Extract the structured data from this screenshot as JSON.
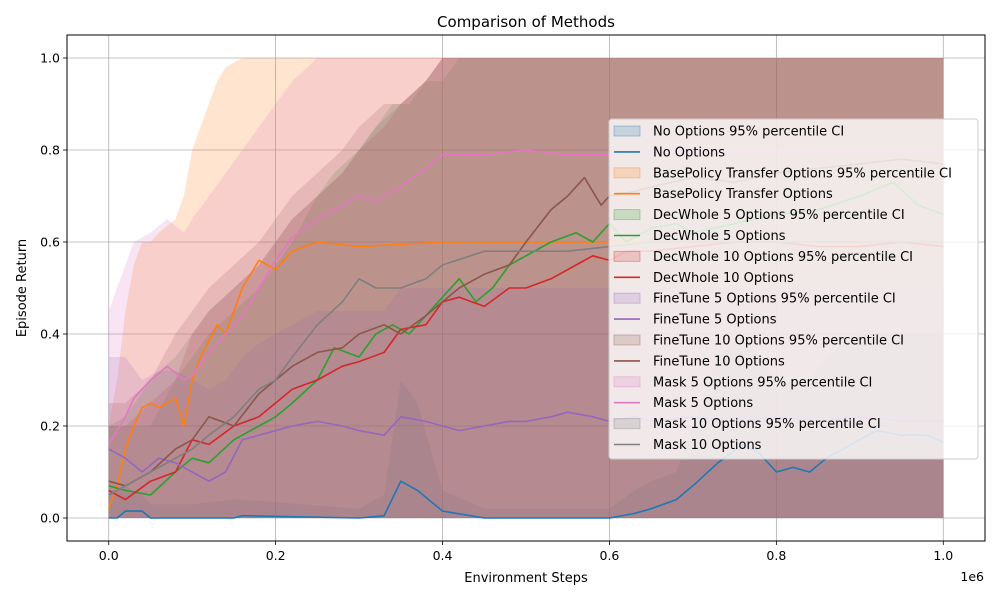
{
  "chart_data": {
    "type": "line",
    "title": "Comparison of Methods",
    "xlabel": "Environment Steps",
    "ylabel": "Episode Return",
    "x_offset_text": "1e6",
    "xlim": [
      -0.05,
      1.05
    ],
    "ylim": [
      -0.05,
      1.05
    ],
    "x_tick_labels": [
      "0.0",
      "0.2",
      "0.4",
      "0.6",
      "0.8",
      "1.0"
    ],
    "y_tick_labels": [
      "0.0",
      "0.2",
      "0.4",
      "0.6",
      "0.8",
      "1.0"
    ],
    "grid": true,
    "legend_position": "right",
    "legend_labels": [
      "No Options 95% percentile CI",
      "No Options",
      "BasePolicy Transfer Options 95% percentile CI",
      "BasePolicy Transfer Options",
      "DecWhole 5 Options 95% percentile CI",
      "DecWhole 5 Options",
      "DecWhole 10 Options 95% percentile CI",
      "DecWhole 10 Options",
      "FineTune 5 Options 95% percentile CI",
      "FineTune 5 Options",
      "FineTune 10 Options 95% percentile CI",
      "FineTune 10 Options",
      "Mask 5 Options 95% percentile CI",
      "Mask 5 Options",
      "Mask 10 Options 95% percentile CI",
      "Mask 10 Options"
    ],
    "series": [
      {
        "name": "No Options",
        "color": "#1f77b4",
        "x": [
          0,
          0.01,
          0.02,
          0.04,
          0.05,
          0.1,
          0.15,
          0.16,
          0.3,
          0.33,
          0.35,
          0.37,
          0.4,
          0.45,
          0.6,
          0.63,
          0.65,
          0.68,
          0.7,
          0.73,
          0.76,
          0.78,
          0.8,
          0.82,
          0.84,
          0.86,
          0.9,
          0.92,
          0.95,
          0.98,
          1.0
        ],
        "y": [
          0.0,
          0.0,
          0.015,
          0.015,
          0.0,
          0.0,
          0.0,
          0.005,
          0.0,
          0.005,
          0.08,
          0.06,
          0.015,
          0.0,
          0.0,
          0.01,
          0.02,
          0.04,
          0.07,
          0.12,
          0.16,
          0.14,
          0.1,
          0.11,
          0.1,
          0.13,
          0.17,
          0.19,
          0.18,
          0.18,
          0.165
        ],
        "ci_upper": [
          0.06,
          0.06,
          0.07,
          0.05,
          0.03,
          0.03,
          0.04,
          0.04,
          0.02,
          0.05,
          0.3,
          0.25,
          0.06,
          0.02,
          0.02,
          0.06,
          0.08,
          0.1,
          0.2,
          0.35,
          0.4,
          0.35,
          0.3,
          0.3,
          0.3,
          0.35,
          0.4,
          0.4,
          0.4,
          0.4,
          0.4
        ]
      },
      {
        "name": "BasePolicy Transfer Options",
        "color": "#ff7f0e",
        "x": [
          0,
          0.01,
          0.02,
          0.03,
          0.04,
          0.05,
          0.06,
          0.08,
          0.09,
          0.1,
          0.11,
          0.13,
          0.14,
          0.16,
          0.18,
          0.2,
          0.22,
          0.25,
          0.3,
          0.4,
          0.5,
          0.6,
          0.7,
          0.8,
          0.9,
          1.0
        ],
        "y": [
          0.02,
          0.07,
          0.15,
          0.2,
          0.24,
          0.25,
          0.24,
          0.26,
          0.2,
          0.3,
          0.35,
          0.42,
          0.4,
          0.5,
          0.56,
          0.54,
          0.58,
          0.6,
          0.59,
          0.6,
          0.6,
          0.6,
          0.6,
          0.6,
          0.6,
          0.6
        ],
        "ci_upper": [
          0.2,
          0.3,
          0.45,
          0.55,
          0.6,
          0.6,
          0.62,
          0.65,
          0.7,
          0.8,
          0.85,
          0.95,
          0.98,
          1.0,
          1.0,
          1.0,
          1.0,
          1.0,
          1.0,
          1.0,
          1.0,
          1.0,
          1.0,
          1.0,
          1.0,
          1.0
        ]
      },
      {
        "name": "DecWhole 5 Options",
        "color": "#2ca02c",
        "x": [
          0,
          0.02,
          0.05,
          0.08,
          0.1,
          0.12,
          0.15,
          0.18,
          0.2,
          0.22,
          0.25,
          0.27,
          0.3,
          0.32,
          0.34,
          0.36,
          0.38,
          0.4,
          0.42,
          0.44,
          0.46,
          0.48,
          0.5,
          0.53,
          0.56,
          0.58,
          0.6,
          0.62,
          0.65,
          0.68,
          0.7,
          0.75,
          0.8,
          0.85,
          0.9,
          0.94,
          0.97,
          1.0
        ],
        "y": [
          0.07,
          0.06,
          0.05,
          0.1,
          0.13,
          0.12,
          0.17,
          0.2,
          0.22,
          0.25,
          0.3,
          0.37,
          0.35,
          0.4,
          0.42,
          0.4,
          0.44,
          0.48,
          0.52,
          0.47,
          0.5,
          0.55,
          0.57,
          0.6,
          0.62,
          0.6,
          0.64,
          0.6,
          0.63,
          0.64,
          0.62,
          0.64,
          0.66,
          0.67,
          0.7,
          0.73,
          0.68,
          0.66
        ],
        "ci_upper": [
          0.2,
          0.2,
          0.2,
          0.3,
          0.35,
          0.4,
          0.45,
          0.5,
          0.55,
          0.6,
          0.7,
          0.75,
          0.8,
          0.85,
          0.9,
          0.9,
          0.95,
          0.95,
          1.0,
          1.0,
          1.0,
          1.0,
          1.0,
          1.0,
          1.0,
          1.0,
          1.0,
          1.0,
          1.0,
          1.0,
          1.0,
          1.0,
          1.0,
          1.0,
          1.0,
          1.0,
          1.0,
          1.0
        ]
      },
      {
        "name": "DecWhole 10 Options",
        "color": "#d62728",
        "x": [
          0,
          0.02,
          0.05,
          0.08,
          0.1,
          0.12,
          0.15,
          0.18,
          0.2,
          0.22,
          0.25,
          0.28,
          0.3,
          0.33,
          0.35,
          0.38,
          0.4,
          0.42,
          0.45,
          0.48,
          0.5,
          0.53,
          0.56,
          0.58,
          0.6,
          0.62,
          0.65,
          0.7,
          0.75,
          0.8,
          0.85,
          0.9,
          0.95,
          1.0
        ],
        "y": [
          0.06,
          0.04,
          0.08,
          0.1,
          0.17,
          0.16,
          0.2,
          0.22,
          0.25,
          0.28,
          0.3,
          0.33,
          0.34,
          0.36,
          0.41,
          0.42,
          0.47,
          0.48,
          0.46,
          0.5,
          0.5,
          0.52,
          0.55,
          0.57,
          0.56,
          0.58,
          0.58,
          0.59,
          0.6,
          0.6,
          0.59,
          0.59,
          0.6,
          0.59
        ],
        "ci_upper": [
          0.2,
          0.2,
          0.25,
          0.3,
          0.4,
          0.45,
          0.5,
          0.55,
          0.6,
          0.65,
          0.7,
          0.75,
          0.8,
          0.85,
          0.9,
          0.95,
          1.0,
          1.0,
          1.0,
          1.0,
          1.0,
          1.0,
          1.0,
          1.0,
          1.0,
          1.0,
          1.0,
          1.0,
          1.0,
          1.0,
          1.0,
          1.0,
          1.0,
          1.0
        ]
      },
      {
        "name": "FineTune 5 Options",
        "color": "#9467bd",
        "x": [
          0,
          0.02,
          0.04,
          0.06,
          0.08,
          0.1,
          0.12,
          0.14,
          0.16,
          0.18,
          0.2,
          0.22,
          0.25,
          0.28,
          0.3,
          0.33,
          0.35,
          0.38,
          0.4,
          0.42,
          0.45,
          0.48,
          0.5,
          0.53,
          0.55,
          0.58,
          0.6,
          0.63,
          0.65,
          0.7,
          0.75,
          0.8,
          0.85,
          0.9,
          0.95,
          1.0
        ],
        "y": [
          0.15,
          0.13,
          0.1,
          0.13,
          0.12,
          0.1,
          0.08,
          0.1,
          0.17,
          0.18,
          0.19,
          0.2,
          0.21,
          0.2,
          0.19,
          0.18,
          0.22,
          0.21,
          0.2,
          0.19,
          0.2,
          0.21,
          0.21,
          0.22,
          0.23,
          0.22,
          0.21,
          0.22,
          0.21,
          0.22,
          0.21,
          0.22,
          0.21,
          0.22,
          0.21,
          0.21
        ],
        "ci_upper": [
          0.35,
          0.35,
          0.3,
          0.32,
          0.32,
          0.3,
          0.28,
          0.3,
          0.35,
          0.38,
          0.4,
          0.42,
          0.45,
          0.45,
          0.45,
          0.45,
          0.5,
          0.5,
          0.5,
          0.5,
          0.5,
          0.5,
          0.5,
          0.5,
          0.5,
          0.5,
          0.5,
          0.5,
          0.5,
          0.5,
          0.5,
          0.5,
          0.5,
          0.5,
          0.5,
          0.5
        ]
      },
      {
        "name": "FineTune 10 Options",
        "color": "#8c564b",
        "x": [
          0,
          0.02,
          0.05,
          0.08,
          0.1,
          0.12,
          0.15,
          0.18,
          0.2,
          0.22,
          0.25,
          0.28,
          0.3,
          0.33,
          0.35,
          0.38,
          0.4,
          0.42,
          0.45,
          0.48,
          0.5,
          0.53,
          0.55,
          0.57,
          0.59,
          0.6,
          0.63,
          0.65,
          0.7,
          0.75,
          0.8,
          0.85,
          0.9,
          0.95,
          1.0
        ],
        "y": [
          0.08,
          0.07,
          0.1,
          0.15,
          0.17,
          0.22,
          0.2,
          0.27,
          0.3,
          0.33,
          0.36,
          0.37,
          0.4,
          0.42,
          0.4,
          0.44,
          0.47,
          0.5,
          0.53,
          0.55,
          0.6,
          0.67,
          0.7,
          0.74,
          0.68,
          0.7,
          0.71,
          0.72,
          0.74,
          0.73,
          0.75,
          0.76,
          0.77,
          0.78,
          0.77
        ],
        "ci_upper": [
          0.25,
          0.25,
          0.3,
          0.4,
          0.45,
          0.5,
          0.55,
          0.6,
          0.65,
          0.7,
          0.75,
          0.8,
          0.85,
          0.9,
          0.9,
          0.95,
          1.0,
          1.0,
          1.0,
          1.0,
          1.0,
          1.0,
          1.0,
          1.0,
          1.0,
          1.0,
          1.0,
          1.0,
          1.0,
          1.0,
          1.0,
          1.0,
          1.0,
          1.0,
          1.0
        ]
      },
      {
        "name": "Mask 5 Options",
        "color": "#e377c2",
        "x": [
          0,
          0.01,
          0.02,
          0.03,
          0.05,
          0.07,
          0.09,
          0.1,
          0.12,
          0.14,
          0.16,
          0.18,
          0.2,
          0.22,
          0.25,
          0.28,
          0.3,
          0.32,
          0.35,
          0.38,
          0.4,
          0.45,
          0.5,
          0.55,
          0.6,
          0.65,
          0.7,
          0.75,
          0.8,
          0.85,
          0.9,
          0.95,
          1.0
        ],
        "y": [
          0.16,
          0.19,
          0.22,
          0.26,
          0.3,
          0.33,
          0.3,
          0.31,
          0.36,
          0.4,
          0.44,
          0.5,
          0.56,
          0.61,
          0.65,
          0.68,
          0.7,
          0.69,
          0.72,
          0.76,
          0.79,
          0.79,
          0.8,
          0.79,
          0.79,
          0.8,
          0.8,
          0.8,
          0.8,
          0.8,
          0.8,
          0.8,
          0.8
        ],
        "ci_upper": [
          0.45,
          0.5,
          0.55,
          0.6,
          0.62,
          0.65,
          0.62,
          0.65,
          0.7,
          0.75,
          0.8,
          0.85,
          0.9,
          0.95,
          1.0,
          1.0,
          1.0,
          1.0,
          1.0,
          1.0,
          1.0,
          1.0,
          1.0,
          1.0,
          1.0,
          1.0,
          1.0,
          1.0,
          1.0,
          1.0,
          1.0,
          1.0,
          1.0
        ]
      },
      {
        "name": "Mask 10 Options",
        "color": "#7f7f7f",
        "x": [
          0,
          0.02,
          0.05,
          0.08,
          0.1,
          0.12,
          0.15,
          0.18,
          0.2,
          0.22,
          0.25,
          0.28,
          0.3,
          0.32,
          0.35,
          0.38,
          0.4,
          0.45,
          0.5,
          0.55,
          0.6,
          0.65,
          0.7,
          0.75,
          0.8,
          0.85,
          0.9,
          0.95,
          1.0
        ],
        "y": [
          0.05,
          0.07,
          0.1,
          0.13,
          0.15,
          0.18,
          0.22,
          0.28,
          0.3,
          0.35,
          0.42,
          0.47,
          0.52,
          0.5,
          0.5,
          0.52,
          0.55,
          0.58,
          0.58,
          0.58,
          0.59,
          0.6,
          0.6,
          0.6,
          0.6,
          0.6,
          0.6,
          0.6,
          0.6
        ],
        "ci_upper": [
          0.2,
          0.22,
          0.3,
          0.35,
          0.4,
          0.45,
          0.5,
          0.55,
          0.6,
          0.65,
          0.7,
          0.75,
          0.8,
          0.85,
          0.9,
          0.95,
          1.0,
          1.0,
          1.0,
          1.0,
          1.0,
          1.0,
          1.0,
          1.0,
          1.0,
          1.0,
          1.0,
          1.0,
          1.0
        ]
      }
    ]
  }
}
